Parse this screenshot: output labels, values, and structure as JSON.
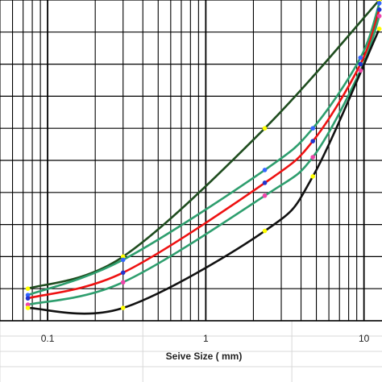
{
  "chart_data": {
    "type": "line",
    "title": "",
    "xlabel": "Seive Size ( mm)",
    "ylabel": "",
    "x_scale": "log",
    "xlim": [
      0.05,
      13
    ],
    "ylim": [
      0,
      100
    ],
    "grid": true,
    "legend": "none",
    "x_ticks": [
      {
        "value": 0.1,
        "label": "0.1"
      },
      {
        "value": 1,
        "label": "1"
      },
      {
        "value": 10,
        "label": "10"
      }
    ],
    "series": [
      {
        "color": "#1f4d1f",
        "marker_color": "#ffff00",
        "x": [
          0.075,
          0.3,
          2.36,
          12.5
        ],
        "y": [
          10,
          20,
          60,
          100
        ]
      },
      {
        "color": "#2e9e6e",
        "marker_color": "#3366ff",
        "x": [
          0.075,
          0.3,
          2.36,
          4.75,
          9.5,
          12.5
        ],
        "y": [
          8,
          19,
          47,
          60,
          82,
          99
        ]
      },
      {
        "color": "#ee1111",
        "marker_color": "#2233cc",
        "x": [
          0.075,
          0.3,
          2.36,
          4.75,
          9.5,
          12.5
        ],
        "y": [
          7,
          15,
          43,
          56,
          80,
          97
        ]
      },
      {
        "color": "#2e9e6e",
        "marker_color": "#ee44aa",
        "x": [
          0.075,
          0.3,
          2.36,
          4.75,
          9.5,
          12.5
        ],
        "y": [
          5,
          12,
          39,
          51,
          78,
          95
        ]
      },
      {
        "color": "#111111",
        "marker_color": "#ffff00",
        "x": [
          0.075,
          0.3,
          2.36,
          4.75,
          12.5
        ],
        "y": [
          4,
          4,
          28,
          45,
          91
        ]
      }
    ]
  }
}
